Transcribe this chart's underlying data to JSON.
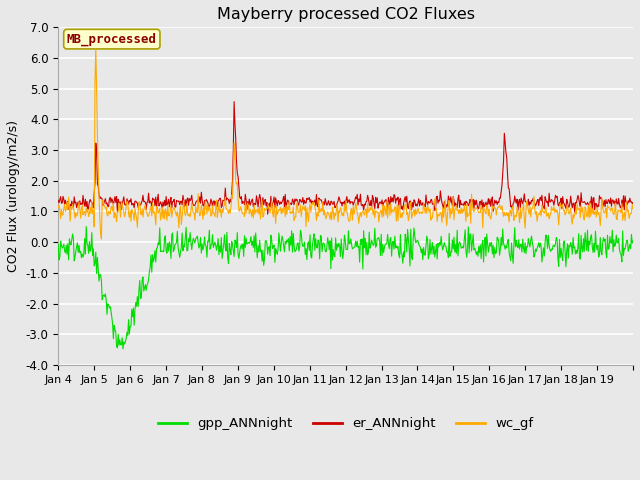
{
  "title": "Mayberry processed CO2 Fluxes",
  "ylabel": "CO2 Flux (urology/m2/s)",
  "ylim": [
    -4.0,
    7.0
  ],
  "yticks": [
    -4.0,
    -3.0,
    -2.0,
    -1.0,
    0.0,
    1.0,
    2.0,
    3.0,
    4.0,
    5.0,
    6.0,
    7.0
  ],
  "n_points": 720,
  "x_start": 3.0,
  "x_end": 19.0,
  "xtick_positions": [
    3,
    4,
    5,
    6,
    7,
    8,
    9,
    10,
    11,
    12,
    13,
    14,
    15,
    16,
    17,
    18,
    19
  ],
  "xtick_labels": [
    "Jan 4",
    "Jan 5",
    "Jan 6",
    "Jan 7",
    "Jan 8",
    "Jan 9",
    "Jan 10",
    "Jan 11",
    "Jan 12",
    "Jan 13",
    "Jan 14",
    "Jan 15",
    "Jan 16",
    "Jan 17",
    "Jan 18",
    "Jan 19",
    ""
  ],
  "colors": {
    "gpp": "#00dd00",
    "er": "#cc0000",
    "wc": "#ffaa00"
  },
  "legend_label": "MB_processed",
  "legend_label_color": "#8b0000",
  "legend_box_color": "#ffffcc",
  "legend_box_edge": "#aaa000",
  "plot_bg_color": "#e8e8e8",
  "fig_bg_color": "#e8e8e8",
  "grid_color": "#ffffff",
  "linewidth": 0.8,
  "seed": 42
}
